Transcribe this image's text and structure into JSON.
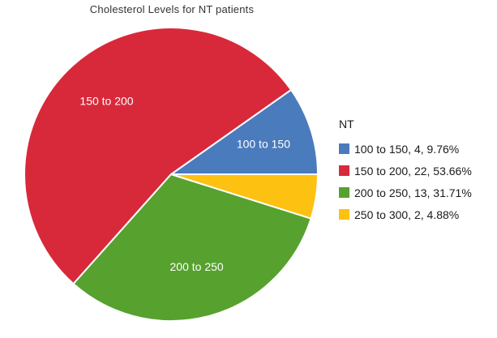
{
  "chart_data": {
    "type": "pie",
    "title": "Cholesterol Levels for NT patients",
    "legend_title": "NT",
    "legend_position": "right",
    "start_angle_deg": 0,
    "direction": "counterclockwise",
    "slices": [
      {
        "label": "100 to 150",
        "count": 4,
        "pct": 9.76,
        "color": "#4A7BBD",
        "legend_text": "100 to 150, 4, 9.76%",
        "show_label_in_slice": true
      },
      {
        "label": "150 to 200",
        "count": 22,
        "pct": 53.66,
        "color": "#D8293B",
        "legend_text": "150 to 200, 22, 53.66%",
        "show_label_in_slice": true
      },
      {
        "label": "200 to 250",
        "count": 13,
        "pct": 31.71,
        "color": "#57A12F",
        "legend_text": "200 to 250, 13, 31.71%",
        "show_label_in_slice": true
      },
      {
        "label": "250 to 300",
        "count": 2,
        "pct": 4.88,
        "color": "#FDC112",
        "legend_text": "250 to 300, 2, 4.88%",
        "show_label_in_slice": false
      }
    ],
    "colors": {
      "background": "#FFFFFF",
      "title_text": "#333333",
      "legend_text": "#1A1A1A",
      "slice_label_text": "#FFFFFF",
      "slice_separator": "#FFFFFF"
    }
  }
}
